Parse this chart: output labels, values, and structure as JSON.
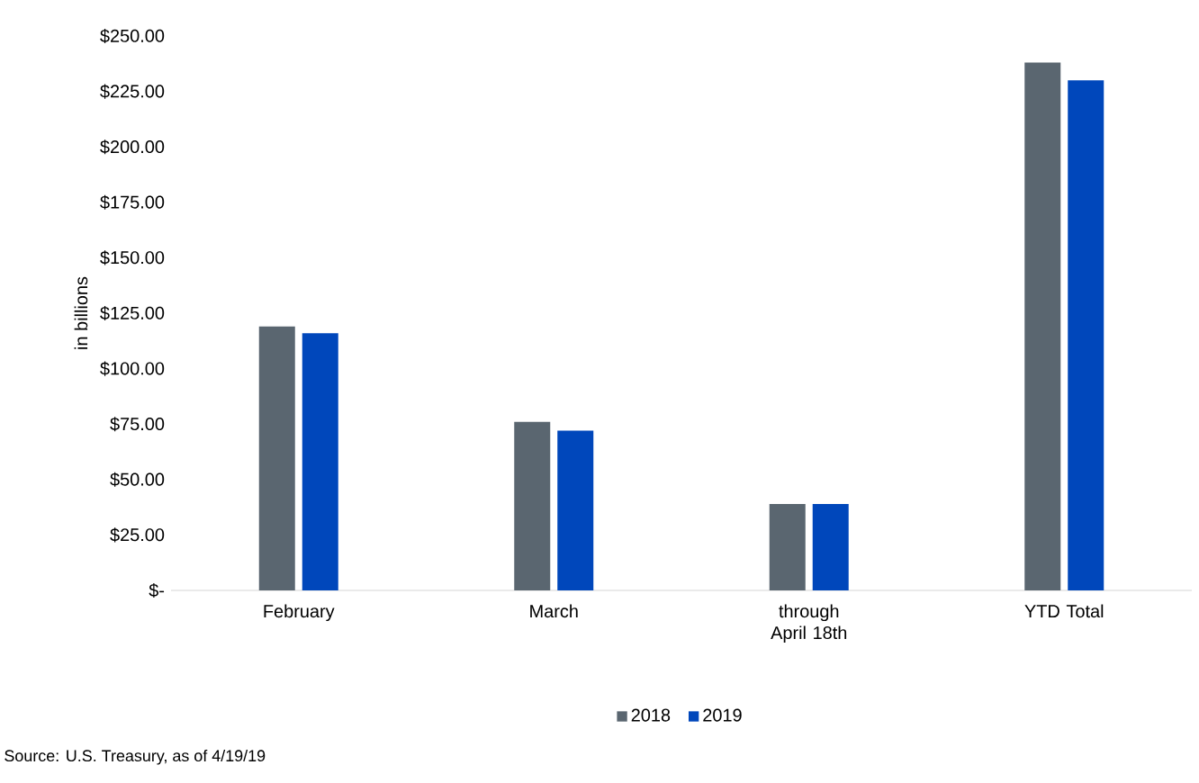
{
  "chart_data": {
    "type": "bar",
    "ylabel": "in billions",
    "categories": [
      "February",
      "March",
      "through April 18th",
      "YTD Total"
    ],
    "series": [
      {
        "name": "2018",
        "color": "#5a6670",
        "values": [
          119,
          76,
          39,
          238
        ]
      },
      {
        "name": "2019",
        "color": "#0047bb",
        "values": [
          116,
          72,
          39,
          230
        ]
      }
    ],
    "ylim": [
      0,
      250
    ],
    "yticks": [
      {
        "value": 0,
        "label": "$-"
      },
      {
        "value": 25,
        "label": "$25.00"
      },
      {
        "value": 50,
        "label": "$50.00"
      },
      {
        "value": 75,
        "label": "$75.00"
      },
      {
        "value": 100,
        "label": "$100.00"
      },
      {
        "value": 125,
        "label": "$125.00"
      },
      {
        "value": 150,
        "label": "$150.00"
      },
      {
        "value": 175,
        "label": "$175.00"
      },
      {
        "value": 200,
        "label": "$200.00"
      },
      {
        "value": 225,
        "label": "$225.00"
      },
      {
        "value": 250,
        "label": "$250.00"
      }
    ],
    "legend": "bottom",
    "annotations": [
      "Source: U.S. Treasury, as of 4/19/19"
    ]
  }
}
